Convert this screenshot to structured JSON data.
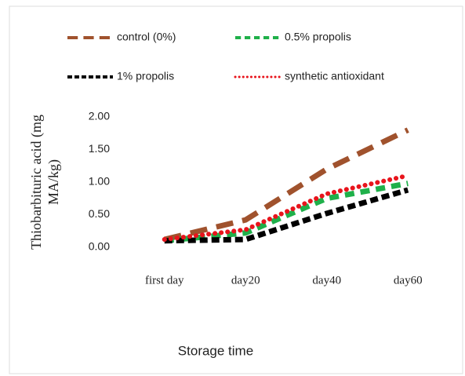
{
  "chart_data": {
    "type": "line",
    "x_label": "Storage time",
    "y_label": [
      "Thiobarbituric acid  (mg",
      "MA/kg)"
    ],
    "categories": [
      "first day",
      "day20",
      "day40",
      "day60"
    ],
    "series": [
      {
        "name": "control (0%)",
        "color": "#a0522d",
        "dash": "22 12",
        "values": [
          0.12,
          0.42,
          1.2,
          1.8
        ]
      },
      {
        "name": "0.5% propolis",
        "color": "#1fb04a",
        "dash": "12 8",
        "values": [
          0.1,
          0.22,
          0.75,
          0.98
        ]
      },
      {
        "name": "1% propolis",
        "color": "#000000",
        "dash": "10 5",
        "values": [
          0.1,
          0.12,
          0.52,
          0.88
        ]
      },
      {
        "name": "synthetic antioxidant",
        "color": "#e8141c",
        "dash": "0.1 8",
        "values": [
          0.12,
          0.27,
          0.82,
          1.1
        ]
      }
    ],
    "ylim": [
      0,
      2
    ],
    "yticks": [
      {
        "value": 0,
        "label": "0.00"
      },
      {
        "value": 0.5,
        "label": "0.50"
      },
      {
        "value": 1,
        "label": "1.00"
      },
      {
        "value": 1.5,
        "label": "1.50"
      },
      {
        "value": 2,
        "label": "2.00"
      }
    ],
    "grid": false
  }
}
